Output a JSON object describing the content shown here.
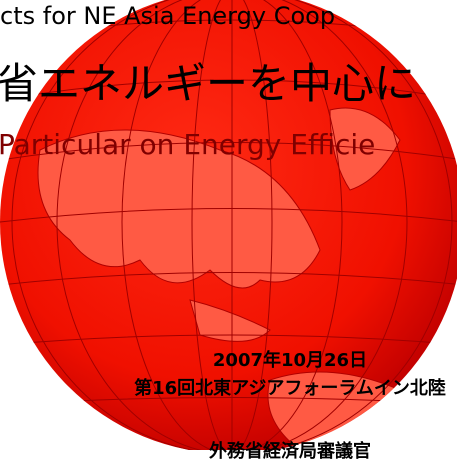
{
  "header": {
    "line1": "cts for NE Asia Energy Coop",
    "line2": "省エネルギーを中心に",
    "line3": "Particular on  Energy Efficie"
  },
  "footer": {
    "date": "2007年10月26日",
    "event": "第16回北東アジアフォーラムイン北陸",
    "speaker": "外務省経済局審議官"
  }
}
